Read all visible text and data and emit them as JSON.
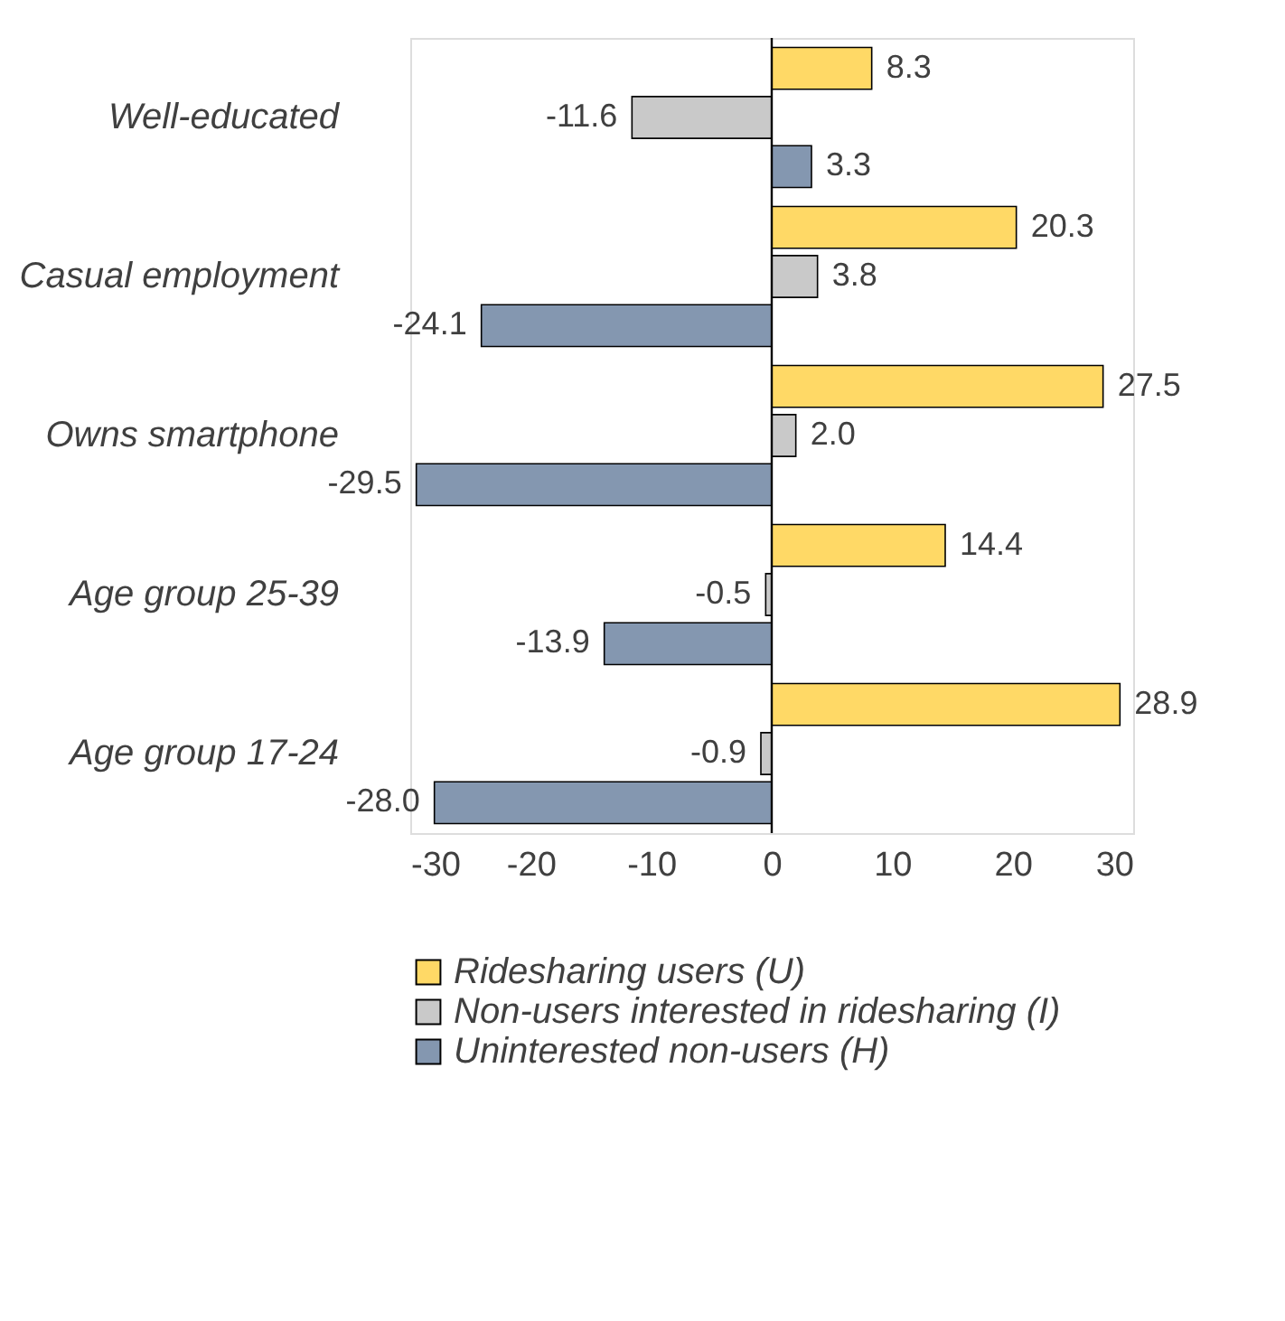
{
  "chart_data": {
    "type": "bar",
    "orientation": "horizontal",
    "categories": [
      "Well-educated",
      "Casual employment",
      "Owns smartphone",
      "Age group 25-39",
      "Age group 17-24"
    ],
    "series": [
      {
        "name": "Ridesharing users (U)",
        "color": "#ffd966",
        "values": [
          8.3,
          20.3,
          27.5,
          14.4,
          28.9
        ],
        "value_labels": [
          "8.3",
          "20.3",
          "27.5",
          "14.4",
          "28.9"
        ]
      },
      {
        "name": "Non-users interested in ridesharing (I)",
        "color": "#c9c9c9",
        "values": [
          -11.6,
          3.8,
          2.0,
          -0.5,
          -0.9
        ],
        "value_labels": [
          "-11.6",
          "3.8",
          "2.0",
          "-0.5",
          "-0.9"
        ]
      },
      {
        "name": "Uninterested non-users (H)",
        "color": "#8497b0",
        "values": [
          3.3,
          -24.1,
          -29.5,
          -13.9,
          -28.0
        ],
        "value_labels": [
          "3.3",
          "-24.1",
          "-29.5",
          "-13.9",
          "-28.0"
        ]
      }
    ],
    "xlim": [
      -30,
      30
    ],
    "xticks": [
      -30,
      -20,
      -10,
      0,
      10,
      20,
      30
    ],
    "ref_lines": [
      {
        "axis": "x",
        "value": 0,
        "color": "#000000"
      }
    ],
    "grid": false,
    "legend": "bottom"
  }
}
